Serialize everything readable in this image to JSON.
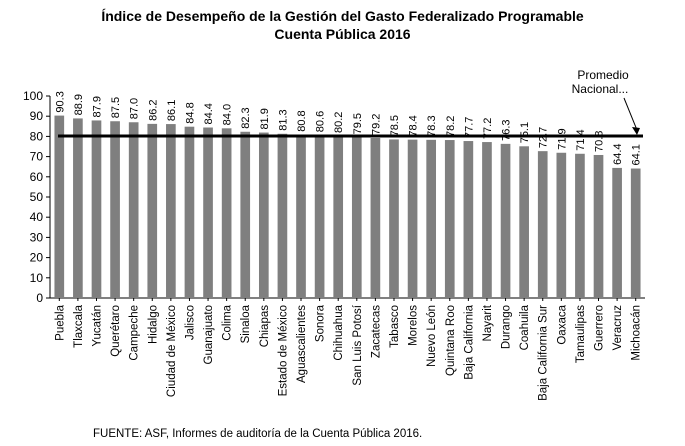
{
  "chart_data": {
    "type": "bar",
    "title": "Índice de Desempeño de la Gestión del Gasto Federalizado Programable",
    "subtitle": "Cuenta Pública 2016",
    "xlabel": "",
    "ylabel": "",
    "ylim": [
      0,
      100
    ],
    "yticks": [
      "0",
      "10",
      "20",
      "30",
      "40",
      "50",
      "60",
      "70",
      "80",
      "90",
      "100"
    ],
    "grid": false,
    "categories": [
      "Puebla",
      "Tlaxcala",
      "Yucatán",
      "Querétaro",
      "Campeche",
      "Hidalgo",
      "Ciudad de México",
      "Jalisco",
      "Guanajuato",
      "Colima",
      "Sinaloa",
      "Chiapas",
      "Estado de México",
      "Aguascalientes",
      "Sonora",
      "Chihuahua",
      "San Luis Potosí",
      "Zacatecas",
      "Tabasco",
      "Morelos",
      "Nuevo León",
      "Quintana Roo",
      "Baja California",
      "Nayarit",
      "Durango",
      "Coahuila",
      "Baja California Sur",
      "Oaxaca",
      "Tamaulipas",
      "Guerrero",
      "Veracruz",
      "Michoacán"
    ],
    "values": [
      90.3,
      88.9,
      87.9,
      87.5,
      87.0,
      86.2,
      86.1,
      84.8,
      84.4,
      84.0,
      82.3,
      81.9,
      81.3,
      80.8,
      80.6,
      80.2,
      79.5,
      79.2,
      78.5,
      78.4,
      78.3,
      78.2,
      77.7,
      77.2,
      76.3,
      75.1,
      72.7,
      71.9,
      71.4,
      70.8,
      64.4,
      64.1
    ],
    "data_labels": [
      "90.3",
      "88.9",
      "87.9",
      "87.5",
      "87.0",
      "86.2",
      "86.1",
      "84.8",
      "84.4",
      "84.0",
      "82.3",
      "81.9",
      "81.3",
      "80.8",
      "80.6",
      "80.2",
      "79.5",
      "79.2",
      "78.5",
      "78.4",
      "78.3",
      "78.2",
      "77.7",
      "77.2",
      "76.3",
      "75.1",
      "72.7",
      "71.9",
      "71.4",
      "70.8",
      "64.4",
      "64.1"
    ],
    "bar_color": "#7f7f7f",
    "reference_line": {
      "label": "Promedio Nacional...",
      "value": 80.2,
      "color": "#000000"
    }
  },
  "source_note": "FUENTE: ASF, Informes de auditoría de la Cuenta Pública 2016."
}
